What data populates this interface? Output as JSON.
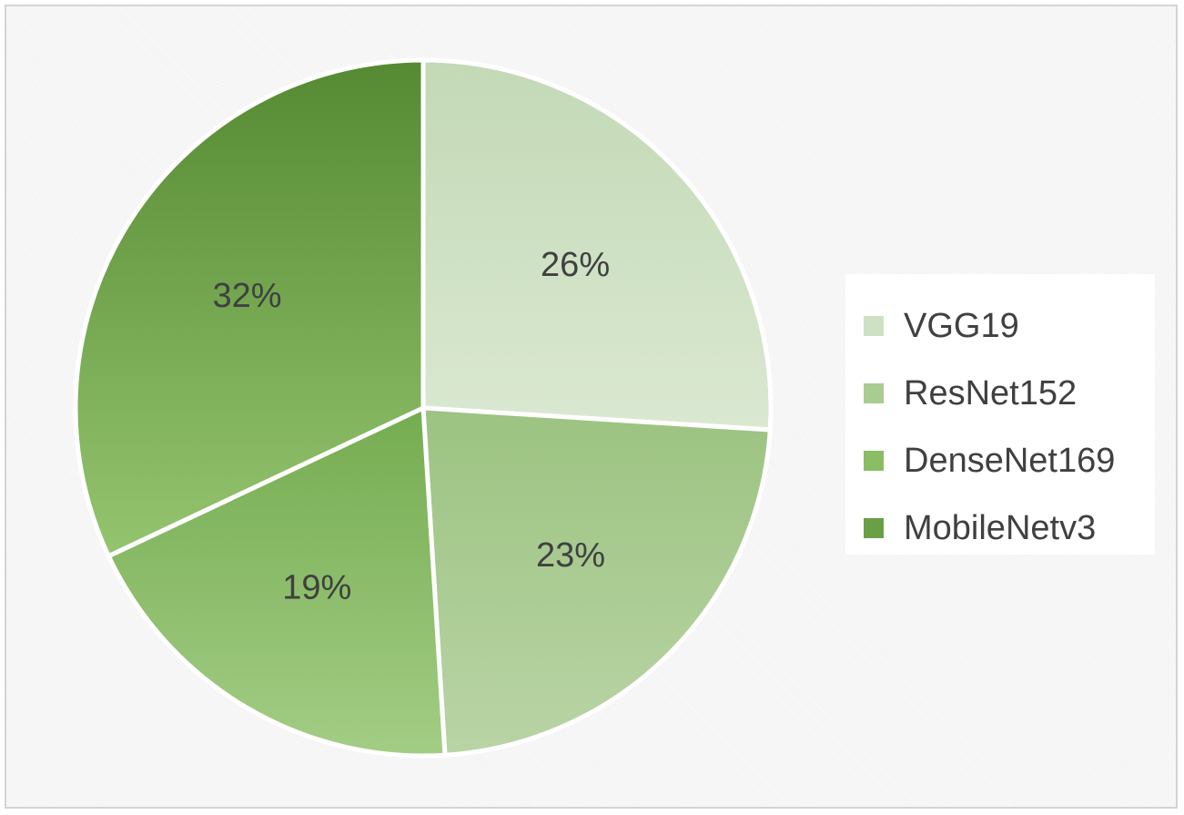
{
  "chart_data": {
    "type": "pie",
    "title": "",
    "categories": [
      "VGG19",
      "ResNet152",
      "DenseNet169",
      "MobileNetv3"
    ],
    "values": [
      26,
      23,
      19,
      32
    ],
    "data_labels": [
      "26%",
      "23%",
      "19%",
      "32%"
    ],
    "colors": [
      [
        "#dae8d1",
        "#c3d9b6"
      ],
      [
        "#b9d4a5",
        "#9cc381"
      ],
      [
        "#a3cd85",
        "#75ac50"
      ],
      [
        "#95c46f",
        "#558a32"
      ]
    ],
    "legend": {
      "position": "right",
      "entries": [
        {
          "label": "VGG19",
          "color": "#cfe1c4"
        },
        {
          "label": "ResNet152",
          "color": "#a9cc90"
        },
        {
          "label": "DenseNet169",
          "color": "#8bbd64"
        },
        {
          "label": "MobileNetv3",
          "color": "#6a9f45"
        }
      ]
    },
    "grid": false
  }
}
